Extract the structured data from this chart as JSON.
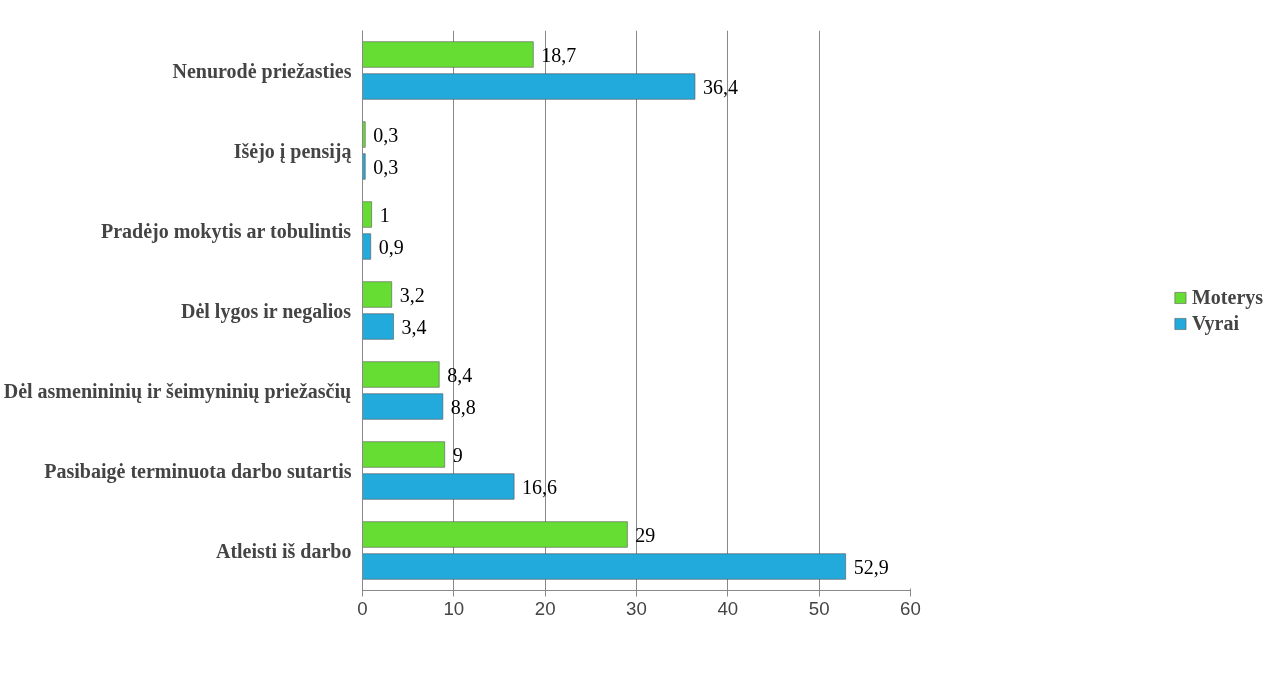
{
  "chart_data": {
    "type": "bar",
    "orientation": "horizontal",
    "categories": [
      "Nenurodė priežasties",
      "Išėjo į pensiją",
      "Pradėjo mokytis ar tobulintis",
      "Dėl lygos ir negalios",
      "Dėl asmenininių ir šeimyninių priežasčių",
      "Pasibaigė terminuota darbo sutartis",
      "Atleisti iš darbo"
    ],
    "series": [
      {
        "name": "Moterys",
        "color": "#66dd33",
        "values": [
          18.7,
          0.3,
          1,
          3.2,
          8.4,
          9,
          29
        ],
        "value_labels": [
          "18,7",
          "0,3",
          "1",
          "3,2",
          "8,4",
          "9",
          "29"
        ]
      },
      {
        "name": "Vyrai",
        "color": "#22aadd",
        "values": [
          36.4,
          0.3,
          0.9,
          3.4,
          8.8,
          16.6,
          52.9
        ],
        "value_labels": [
          "36,4",
          "0,3",
          "0,9",
          "3,4",
          "8,8",
          "16,6",
          "52,9"
        ]
      }
    ],
    "xlim": [
      0,
      60
    ],
    "xticks": [
      0,
      10,
      20,
      30,
      40,
      50,
      60
    ],
    "grid": "x",
    "legend": "right"
  }
}
